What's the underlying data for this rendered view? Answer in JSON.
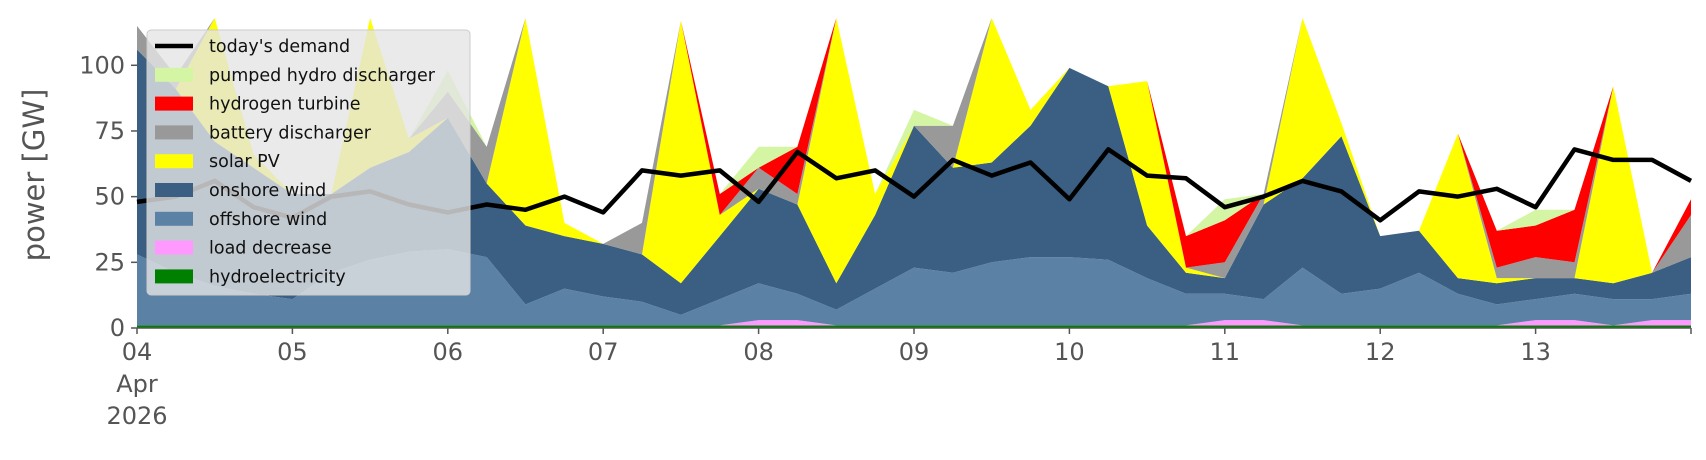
{
  "chart_data": {
    "type": "area",
    "ylabel": "power [GW]",
    "ylim": [
      0,
      118
    ],
    "yticks": [
      "0",
      "25",
      "50",
      "75",
      "100"
    ],
    "x_range_days": [
      "2026-04-04",
      "2026-04-14"
    ],
    "xticks": [
      {
        "date": "2026-04-04",
        "lines": [
          "04",
          "Apr",
          "2026"
        ]
      },
      {
        "date": "2026-04-05",
        "lines": [
          "05"
        ]
      },
      {
        "date": "2026-04-06",
        "lines": [
          "06"
        ]
      },
      {
        "date": "2026-04-07",
        "lines": [
          "07"
        ]
      },
      {
        "date": "2026-04-08",
        "lines": [
          "08"
        ]
      },
      {
        "date": "2026-04-09",
        "lines": [
          "09"
        ]
      },
      {
        "date": "2026-04-10",
        "lines": [
          "10"
        ]
      },
      {
        "date": "2026-04-11",
        "lines": [
          "11"
        ]
      },
      {
        "date": "2026-04-12",
        "lines": [
          "12"
        ]
      },
      {
        "date": "2026-04-13",
        "lines": [
          "13"
        ]
      }
    ],
    "grid": false,
    "legend_position": "top-left",
    "legend": [
      {
        "label": "today's demand",
        "color": "#000000",
        "kind": "line"
      },
      {
        "label": "pumped hydro discharger",
        "color": "#d4f5a4",
        "kind": "patch"
      },
      {
        "label": "hydrogen turbine",
        "color": "#ff0000",
        "kind": "patch"
      },
      {
        "label": "battery discharger",
        "color": "#999999",
        "kind": "patch"
      },
      {
        "label": "solar PV",
        "color": "#ffff00",
        "kind": "patch"
      },
      {
        "label": "onshore wind",
        "color": "#3a5f82",
        "kind": "patch"
      },
      {
        "label": "offshore wind",
        "color": "#5b82a5",
        "kind": "patch"
      },
      {
        "label": "load decrease",
        "color": "#ff99ff",
        "kind": "patch"
      },
      {
        "label": "hydroelectricity",
        "color": "#008000",
        "kind": "patch"
      }
    ],
    "x": [
      "2026-04-04 00:00",
      "2026-04-04 06:00",
      "2026-04-04 12:00",
      "2026-04-04 18:00",
      "2026-04-05 00:00",
      "2026-04-05 06:00",
      "2026-04-05 12:00",
      "2026-04-05 18:00",
      "2026-04-06 00:00",
      "2026-04-06 06:00",
      "2026-04-06 12:00",
      "2026-04-06 18:00",
      "2026-04-07 00:00",
      "2026-04-07 06:00",
      "2026-04-07 12:00",
      "2026-04-07 18:00",
      "2026-04-08 00:00",
      "2026-04-08 06:00",
      "2026-04-08 12:00",
      "2026-04-08 18:00",
      "2026-04-09 00:00",
      "2026-04-09 06:00",
      "2026-04-09 12:00",
      "2026-04-09 18:00",
      "2026-04-10 00:00",
      "2026-04-10 06:00",
      "2026-04-10 12:00",
      "2026-04-10 18:00",
      "2026-04-11 00:00",
      "2026-04-11 06:00",
      "2026-04-11 12:00",
      "2026-04-11 18:00",
      "2026-04-12 00:00",
      "2026-04-12 06:00",
      "2026-04-12 12:00",
      "2026-04-12 18:00",
      "2026-04-13 00:00",
      "2026-04-13 06:00",
      "2026-04-13 12:00",
      "2026-04-13 18:00",
      "2026-04-14 00:00"
    ],
    "series": [
      {
        "name": "hydroelectricity",
        "color": "#008000",
        "values": [
          1,
          1,
          1,
          1,
          1,
          1,
          1,
          1,
          1,
          1,
          1,
          1,
          1,
          1,
          1,
          1,
          1,
          1,
          1,
          1,
          1,
          1,
          1,
          1,
          1,
          1,
          1,
          1,
          1,
          1,
          1,
          1,
          1,
          1,
          1,
          1,
          1,
          1,
          1,
          1,
          1
        ]
      },
      {
        "name": "load decrease",
        "color": "#ff99ff",
        "values": [
          0,
          0,
          0,
          0,
          0,
          0,
          0,
          0,
          0,
          0,
          0,
          0,
          0,
          0,
          0,
          0,
          2,
          2,
          0,
          0,
          0,
          0,
          0,
          0,
          0,
          0,
          0,
          0,
          2,
          2,
          0,
          0,
          0,
          0,
          0,
          0,
          2,
          2,
          0,
          2,
          2
        ]
      },
      {
        "name": "offshore wind",
        "color": "#5b82a5",
        "values": [
          27,
          20,
          15,
          12,
          10,
          20,
          25,
          28,
          29,
          26,
          8,
          14,
          11,
          9,
          4,
          10,
          14,
          10,
          6,
          14,
          22,
          20,
          24,
          26,
          26,
          25,
          18,
          12,
          10,
          8,
          22,
          12,
          14,
          20,
          12,
          8,
          8,
          10,
          10,
          8,
          10
        ]
      },
      {
        "name": "onshore wind",
        "color": "#3a5f82",
        "values": [
          78,
          70,
          55,
          48,
          40,
          30,
          35,
          38,
          50,
          28,
          30,
          20,
          20,
          18,
          12,
          24,
          36,
          34,
          10,
          28,
          54,
          40,
          38,
          50,
          72,
          66,
          20,
          8,
          6,
          36,
          34,
          60,
          20,
          16,
          6,
          8,
          8,
          6,
          6,
          10,
          14
        ]
      },
      {
        "name": "solar PV",
        "color": "#ffff00",
        "values": [
          0,
          0,
          80,
          5,
          0,
          0,
          80,
          5,
          0,
          0,
          90,
          5,
          0,
          0,
          100,
          8,
          0,
          0,
          110,
          8,
          0,
          0,
          105,
          6,
          0,
          0,
          55,
          2,
          0,
          0,
          130,
          5,
          0,
          0,
          55,
          2,
          0,
          0,
          75,
          0,
          0
        ]
      },
      {
        "name": "battery discharger",
        "color": "#999999",
        "values": [
          9,
          5,
          0,
          0,
          0,
          0,
          0,
          0,
          10,
          14,
          0,
          0,
          0,
          12,
          0,
          0,
          8,
          4,
          0,
          0,
          0,
          16,
          0,
          0,
          0,
          0,
          0,
          0,
          6,
          4,
          0,
          0,
          0,
          0,
          0,
          4,
          8,
          6,
          0,
          0,
          16
        ]
      },
      {
        "name": "hydrogen turbine",
        "color": "#ff0000",
        "values": [
          0,
          0,
          0,
          0,
          0,
          0,
          0,
          0,
          0,
          0,
          0,
          0,
          0,
          0,
          0,
          8,
          0,
          18,
          0,
          0,
          0,
          0,
          0,
          0,
          0,
          0,
          0,
          12,
          16,
          0,
          0,
          0,
          0,
          0,
          0,
          14,
          12,
          20,
          0,
          0,
          6
        ]
      },
      {
        "name": "pumped hydro discharger",
        "color": "#d4f5a4",
        "values": [
          0,
          0,
          0,
          0,
          0,
          0,
          0,
          0,
          8,
          0,
          0,
          0,
          0,
          0,
          0,
          0,
          8,
          0,
          0,
          0,
          6,
          0,
          0,
          0,
          0,
          0,
          0,
          0,
          8,
          0,
          0,
          0,
          0,
          0,
          0,
          0,
          6,
          0,
          0,
          0,
          0
        ]
      },
      {
        "name": "today's demand",
        "color": "#000000",
        "kind": "line",
        "values": [
          48,
          50,
          56,
          46,
          42,
          50,
          52,
          47,
          44,
          47,
          45,
          50,
          44,
          60,
          58,
          60,
          48,
          67,
          57,
          60,
          50,
          64,
          58,
          63,
          49,
          68,
          58,
          57,
          46,
          50,
          56,
          52,
          41,
          52,
          50,
          53,
          46,
          68,
          64,
          64,
          56
        ]
      }
    ]
  }
}
